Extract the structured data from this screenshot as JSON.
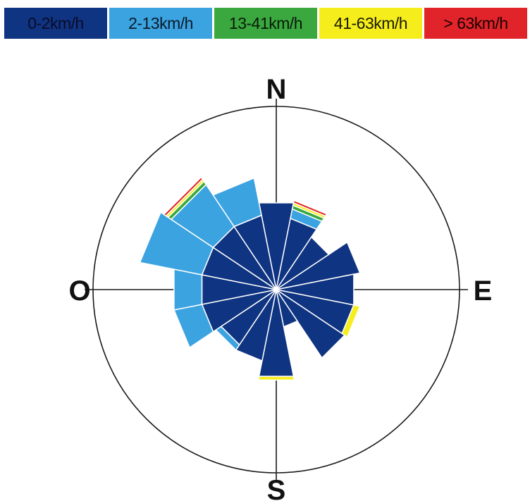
{
  "colors": {
    "background": "#ffffff",
    "axes": "#1a1a1a",
    "separator": "#ffffff"
  },
  "legend": {
    "items": [
      {
        "label": "0-2km/h",
        "color": "#0f3481",
        "text_color": "#0b0b2a"
      },
      {
        "label": "2-13km/h",
        "color": "#3ba3e0",
        "text_color": "#0b1a2a"
      },
      {
        "label": "13-41km/h",
        "color": "#3aa83e",
        "text_color": "#0a1a0a"
      },
      {
        "label": "41-63km/h",
        "color": "#f6ee1c",
        "text_color": "#1a1a00"
      },
      {
        "label": "> 63km/h",
        "color": "#e0242a",
        "text_color": "#1a0000"
      }
    ]
  },
  "compass": {
    "north": "N",
    "east": "E",
    "south": "S",
    "west": "O"
  },
  "chart_data": {
    "type": "wind-rose",
    "title": "",
    "directions": [
      "N",
      "NNE",
      "NE",
      "ENE",
      "E",
      "ESE",
      "SE",
      "SSE",
      "S",
      "SSW",
      "SW",
      "WSW",
      "W",
      "WNW",
      "NW",
      "NNW"
    ],
    "series": [
      {
        "name": "0-2km/h",
        "values": [
          140,
          115,
          100,
          135,
          125,
          125,
          130,
          60,
          140,
          115,
          105,
          120,
          120,
          120,
          120,
          120
        ]
      },
      {
        "name": "2-13km/h",
        "values": [
          0,
          15,
          0,
          0,
          0,
          0,
          0,
          0,
          0,
          0,
          10,
          45,
          45,
          100,
          80,
          60
        ]
      },
      {
        "name": "13-41km/h",
        "values": [
          0,
          6,
          0,
          0,
          0,
          0,
          0,
          0,
          0,
          0,
          0,
          0,
          0,
          0,
          6,
          0
        ]
      },
      {
        "name": "41-63km/h",
        "values": [
          0,
          4,
          0,
          0,
          0,
          10,
          0,
          0,
          6,
          0,
          0,
          0,
          0,
          0,
          4,
          0
        ]
      },
      {
        "name": "> 63km/h",
        "values": [
          0,
          4,
          0,
          0,
          0,
          0,
          0,
          0,
          0,
          0,
          0,
          0,
          0,
          0,
          4,
          0
        ]
      }
    ],
    "sector_angular_width_deg": 22.5,
    "max_radius_value": 290,
    "grid": false
  }
}
